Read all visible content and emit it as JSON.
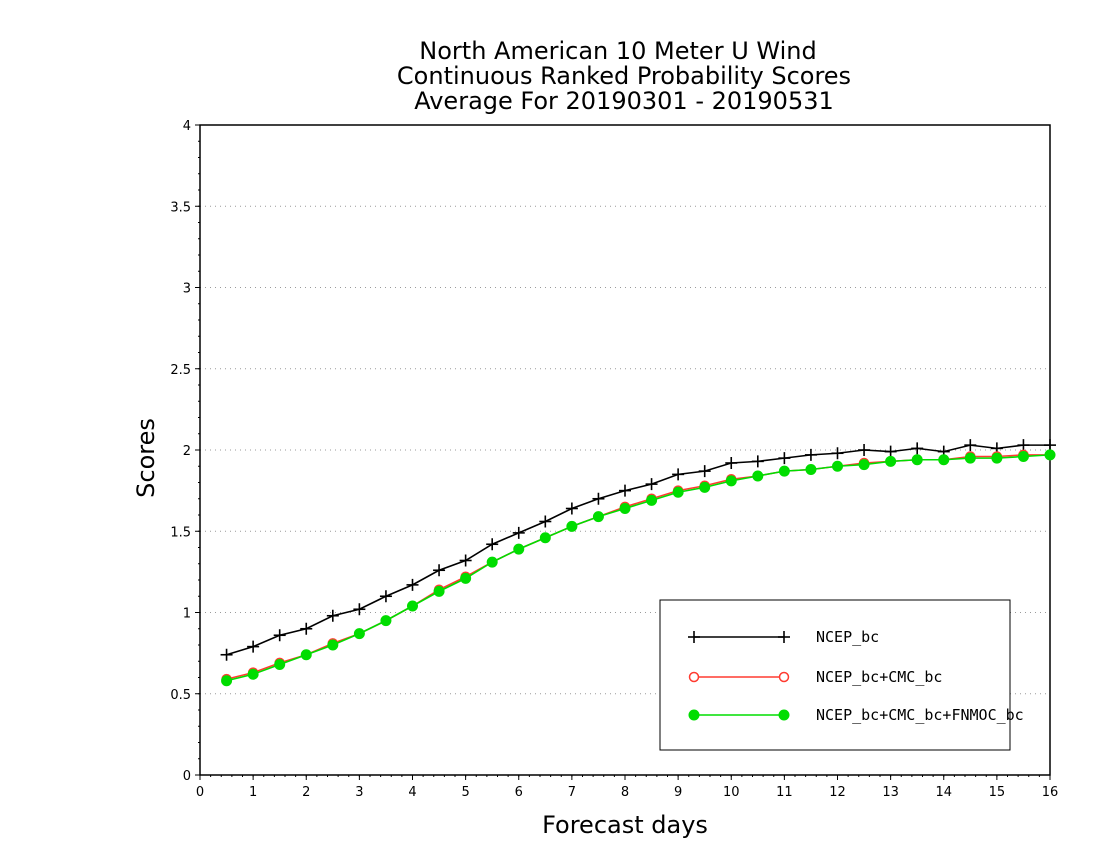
{
  "chart_data": {
    "type": "line",
    "title": [
      "North American 10 Meter U Wind",
      "Continuous Ranked Probability Scores",
      "Average For 20190301 - 20190531"
    ],
    "xlabel": "Forecast days",
    "ylabel": "Scores",
    "xlim": [
      0,
      16
    ],
    "ylim": [
      0,
      4
    ],
    "x_ticks": [
      "0",
      "1",
      "2",
      "3",
      "4",
      "5",
      "6",
      "7",
      "8",
      "9",
      "10",
      "11",
      "12",
      "13",
      "14",
      "15",
      "16"
    ],
    "y_ticks": [
      "0",
      "0.5",
      "1",
      "1.5",
      "2",
      "2.5",
      "3",
      "3.5",
      "4"
    ],
    "y_grid": "dotted",
    "legend_position": "bottom-right",
    "x": [
      0.5,
      1,
      1.5,
      2,
      2.5,
      3,
      3.5,
      4,
      4.5,
      5,
      5.5,
      6,
      6.5,
      7,
      7.5,
      8,
      8.5,
      9,
      9.5,
      10,
      10.5,
      11,
      11.5,
      12,
      12.5,
      13,
      13.5,
      14,
      14.5,
      15,
      15.5,
      16
    ],
    "series": [
      {
        "name": "NCEP_bc",
        "color": "#000000",
        "marker": "plus",
        "values": [
          0.74,
          0.79,
          0.86,
          0.9,
          0.98,
          1.02,
          1.1,
          1.17,
          1.26,
          1.32,
          1.42,
          1.49,
          1.56,
          1.64,
          1.7,
          1.75,
          1.79,
          1.85,
          1.87,
          1.92,
          1.93,
          1.95,
          1.97,
          1.98,
          2.0,
          1.99,
          2.01,
          1.99,
          2.03,
          2.01,
          2.03,
          2.03
        ]
      },
      {
        "name": "NCEP_bc+CMC_bc",
        "color": "#ff3b30",
        "marker": "open-circle",
        "values": [
          0.59,
          0.63,
          0.69,
          0.74,
          0.81,
          0.87,
          0.95,
          1.04,
          1.14,
          1.22,
          1.31,
          1.39,
          1.46,
          1.53,
          1.59,
          1.65,
          1.7,
          1.75,
          1.78,
          1.82,
          1.84,
          1.87,
          1.88,
          1.9,
          1.92,
          1.93,
          1.94,
          1.94,
          1.96,
          1.96,
          1.97,
          1.97
        ]
      },
      {
        "name": "NCEP_bc+CMC_bc+FNMOC_bc",
        "color": "#00dd00",
        "marker": "filled-circle",
        "values": [
          0.58,
          0.62,
          0.68,
          0.74,
          0.8,
          0.87,
          0.95,
          1.04,
          1.13,
          1.21,
          1.31,
          1.39,
          1.46,
          1.53,
          1.59,
          1.64,
          1.69,
          1.74,
          1.77,
          1.81,
          1.84,
          1.87,
          1.88,
          1.9,
          1.91,
          1.93,
          1.94,
          1.94,
          1.95,
          1.95,
          1.96,
          1.97
        ]
      }
    ]
  }
}
